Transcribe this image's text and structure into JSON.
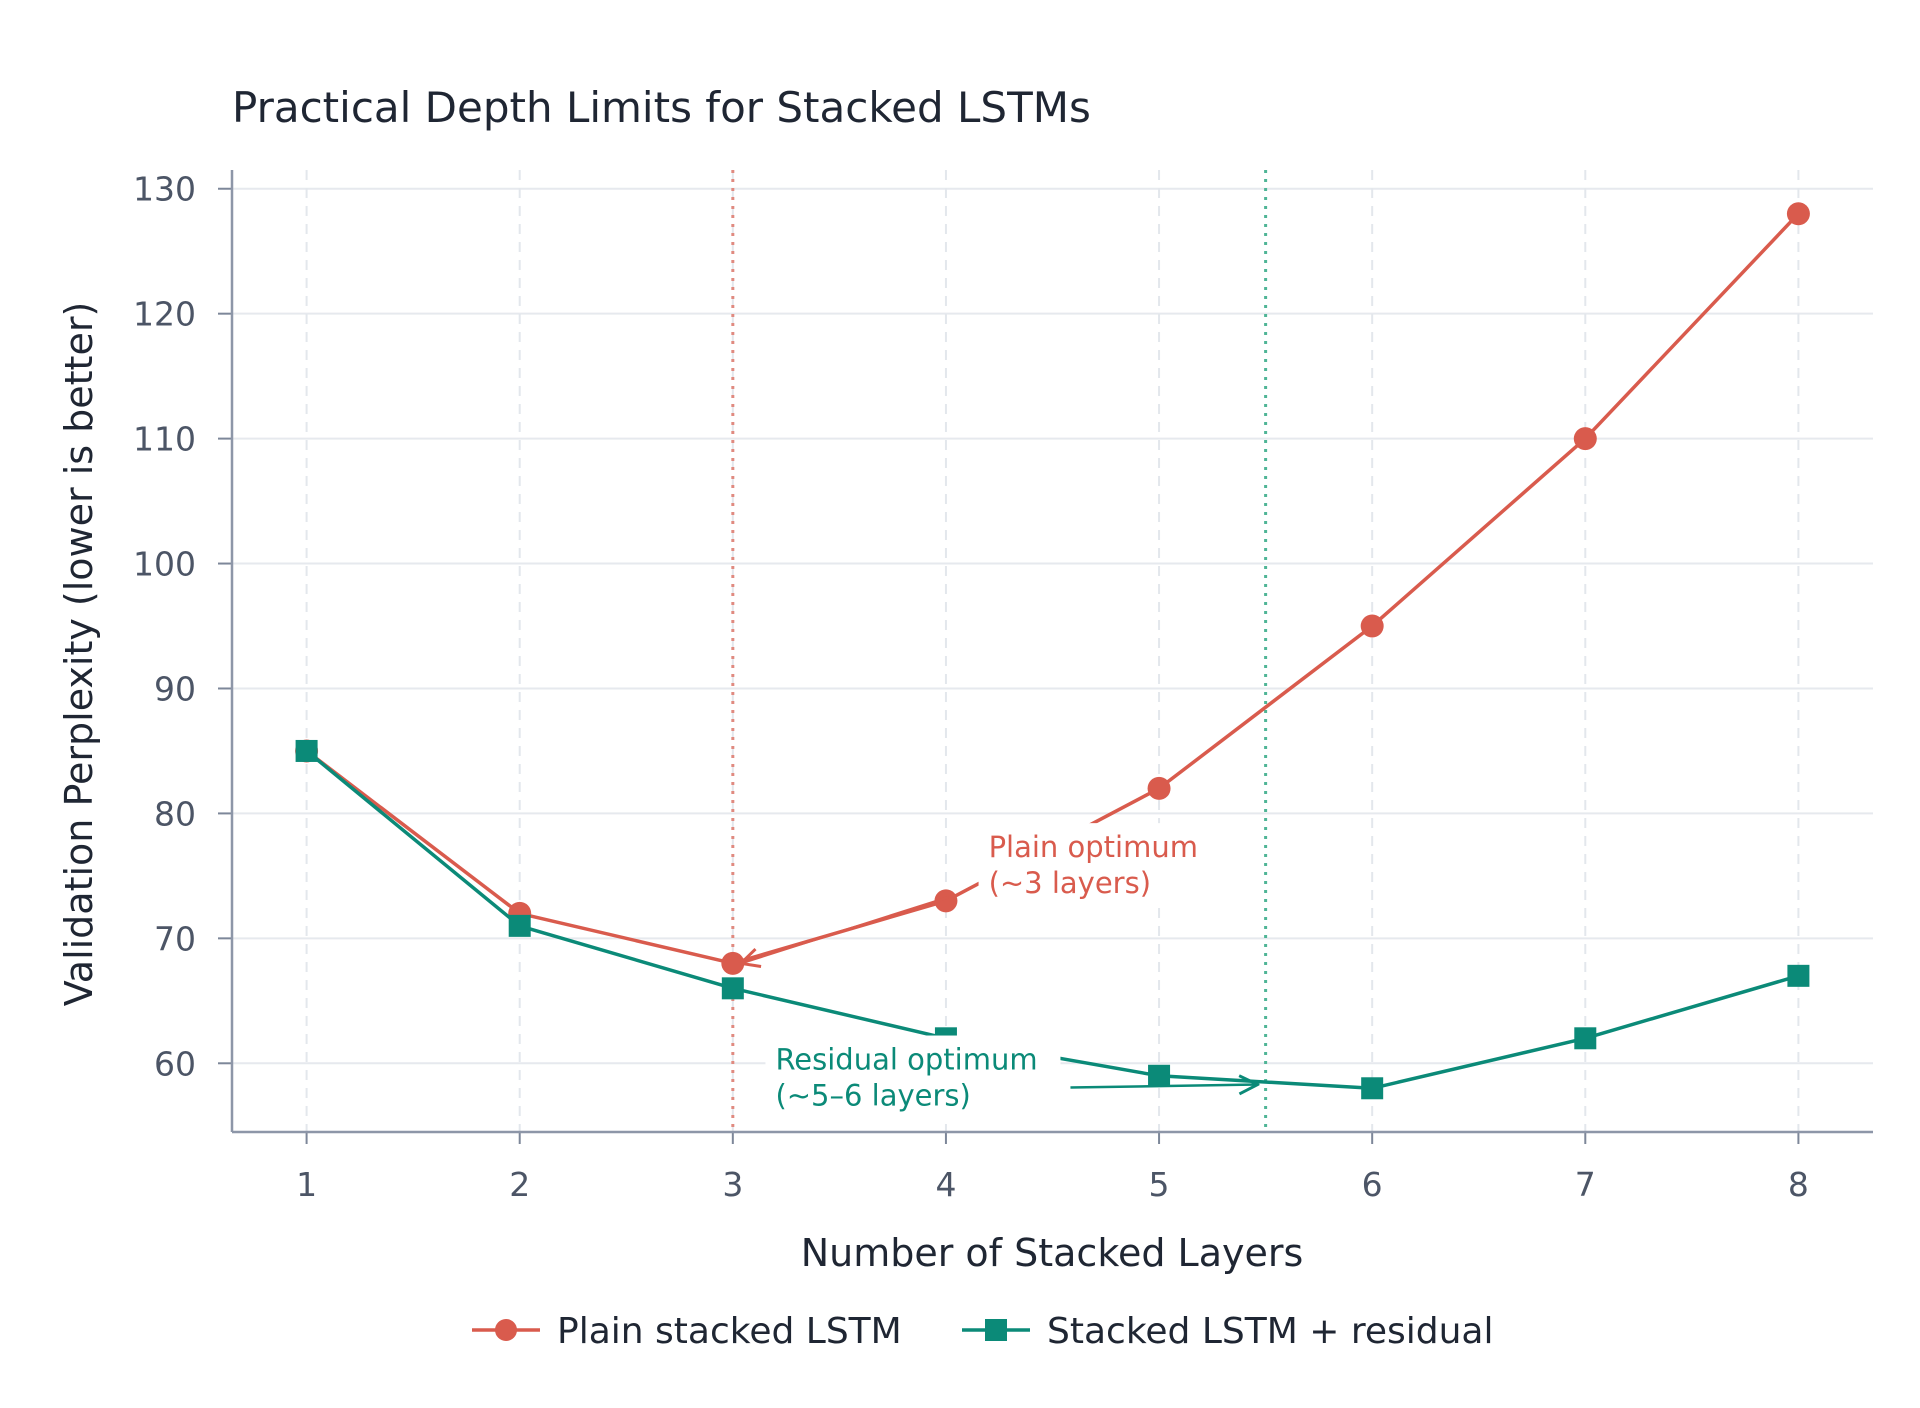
{
  "chart_data": {
    "type": "line",
    "title": "Practical Depth Limits for Stacked LSTMs",
    "xlabel": "Number of Stacked Layers",
    "ylabel": "Validation Perplexity (lower is better)",
    "x": [
      1,
      2,
      3,
      4,
      5,
      6,
      7,
      8
    ],
    "xlim": [
      0.65,
      8.35
    ],
    "ylim": [
      54.5,
      131.5
    ],
    "yticks": [
      60,
      70,
      80,
      90,
      100,
      110,
      120,
      130
    ],
    "grid": true,
    "legend_position": "bottom-center",
    "series": [
      {
        "name": "Plain stacked LSTM",
        "values": [
          85,
          72,
          68,
          73,
          82,
          95,
          110,
          128
        ],
        "color": "#d95b4d",
        "marker": "circle"
      },
      {
        "name": "Stacked LSTM + residual",
        "values": [
          85,
          71,
          66,
          62,
          59,
          58,
          62,
          67
        ],
        "color": "#0b8a78",
        "marker": "square"
      }
    ],
    "reference_lines": [
      {
        "x": 3,
        "color": "#e08a80",
        "style": "dotted"
      },
      {
        "x": 5.5,
        "color": "#4fb596",
        "style": "dotted"
      }
    ],
    "annotations": [
      {
        "series": 0,
        "line1": "Plain optimum",
        "line2": "(~3 layers)",
        "text_at": [
          4.2,
          76.5
        ],
        "arrow_to": [
          3,
          68
        ],
        "color": "#d95b4d"
      },
      {
        "series": 1,
        "line1": "Residual optimum",
        "line2": "(~5–6 layers)",
        "text_at": [
          3.2,
          59.5
        ],
        "arrow_to": [
          5.5,
          58.3
        ],
        "color": "#0b8a78"
      }
    ]
  }
}
